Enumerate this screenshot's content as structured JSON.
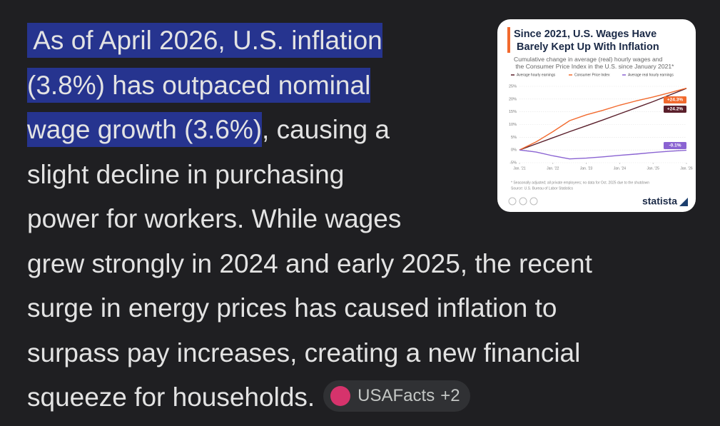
{
  "answer": {
    "lines": [
      [
        {
          "text": " As of April 2026, U.S. inflation",
          "highlight": true
        }
      ],
      [
        {
          "text": "(3.8%) has outpaced nominal",
          "highlight": true
        }
      ],
      [
        {
          "text": "wage growth (3.6%)",
          "highlight": true
        },
        {
          "text": ", causing a",
          "highlight": false
        }
      ],
      [
        {
          "text": "slight decline in purchasing",
          "highlight": false
        }
      ],
      [
        {
          "text": "power for workers. While wages",
          "highlight": false
        }
      ],
      [
        {
          "text": "grew strongly in 2024 and early 2025, the recent",
          "highlight": false
        }
      ],
      [
        {
          "text": "surge in energy prices has caused inflation to",
          "highlight": false
        }
      ],
      [
        {
          "text": "surpass pay increases, creating a new financial",
          "highlight": false
        }
      ],
      [
        {
          "text": "squeeze for households.",
          "highlight": false
        }
      ]
    ],
    "source_chip": {
      "source": "USAFacts",
      "more": "+2"
    }
  },
  "chart_data": {
    "type": "line",
    "title": "Since 2021, U.S. Wages Have Barely Kept Up With Inflation",
    "subtitle": "Cumulative change in average (real) hourly wages and the Consumer Price Index in the U.S. since January 2021*",
    "x": [
      2021,
      2021.5,
      2022,
      2022.5,
      2023,
      2023.5,
      2024,
      2024.5,
      2025,
      2025.5,
      2026
    ],
    "series": [
      {
        "name": "Average hourly earnings",
        "color": "#5a1f2b",
        "values": [
          0,
          2.4,
          4.8,
          7.2,
          9.5,
          11.8,
          14.2,
          16.6,
          19,
          21.6,
          24.2
        ],
        "end_label": "+24.2%"
      },
      {
        "name": "Consumer Price Index",
        "color": "#f26a2e",
        "values": [
          0,
          3.2,
          7.2,
          11.5,
          13.8,
          15.6,
          17.6,
          19.3,
          20.8,
          22.5,
          24.3
        ],
        "end_label": "+24.3%"
      },
      {
        "name": "Average real hourly earnings",
        "color": "#8a63d2",
        "values": [
          0,
          -0.8,
          -2.3,
          -3.5,
          -3.2,
          -2.7,
          -2.1,
          -1.6,
          -1,
          -0.5,
          -0.1
        ],
        "end_label": "-0.1%"
      }
    ],
    "xlim": [
      2021,
      2026
    ],
    "xticks": [
      {
        "value": 2021,
        "label": "Jan. '21"
      },
      {
        "value": 2022,
        "label": "Jan. '22"
      },
      {
        "value": 2023,
        "label": "Jan. '23"
      },
      {
        "value": 2024,
        "label": "Jan. '24"
      },
      {
        "value": 2025,
        "label": "Jan. '25"
      },
      {
        "value": 2026,
        "label": "Jan. '26"
      }
    ],
    "ylim": [
      -5,
      25
    ],
    "yticks": [
      {
        "value": 25,
        "label": "25%"
      },
      {
        "value": 20,
        "label": "20%"
      },
      {
        "value": 15,
        "label": "15%"
      },
      {
        "value": 10,
        "label": "10%"
      },
      {
        "value": 5,
        "label": "5%"
      },
      {
        "value": 0,
        "label": "0%"
      },
      {
        "value": -5,
        "label": "-5%"
      }
    ],
    "grid": true,
    "footnote": "* Seasonally adjusted; all private employees; no data for Oct. 2025 due to the shutdown",
    "source": "Source: U.S. Bureau of Labor Statistics",
    "brand": "statista"
  }
}
